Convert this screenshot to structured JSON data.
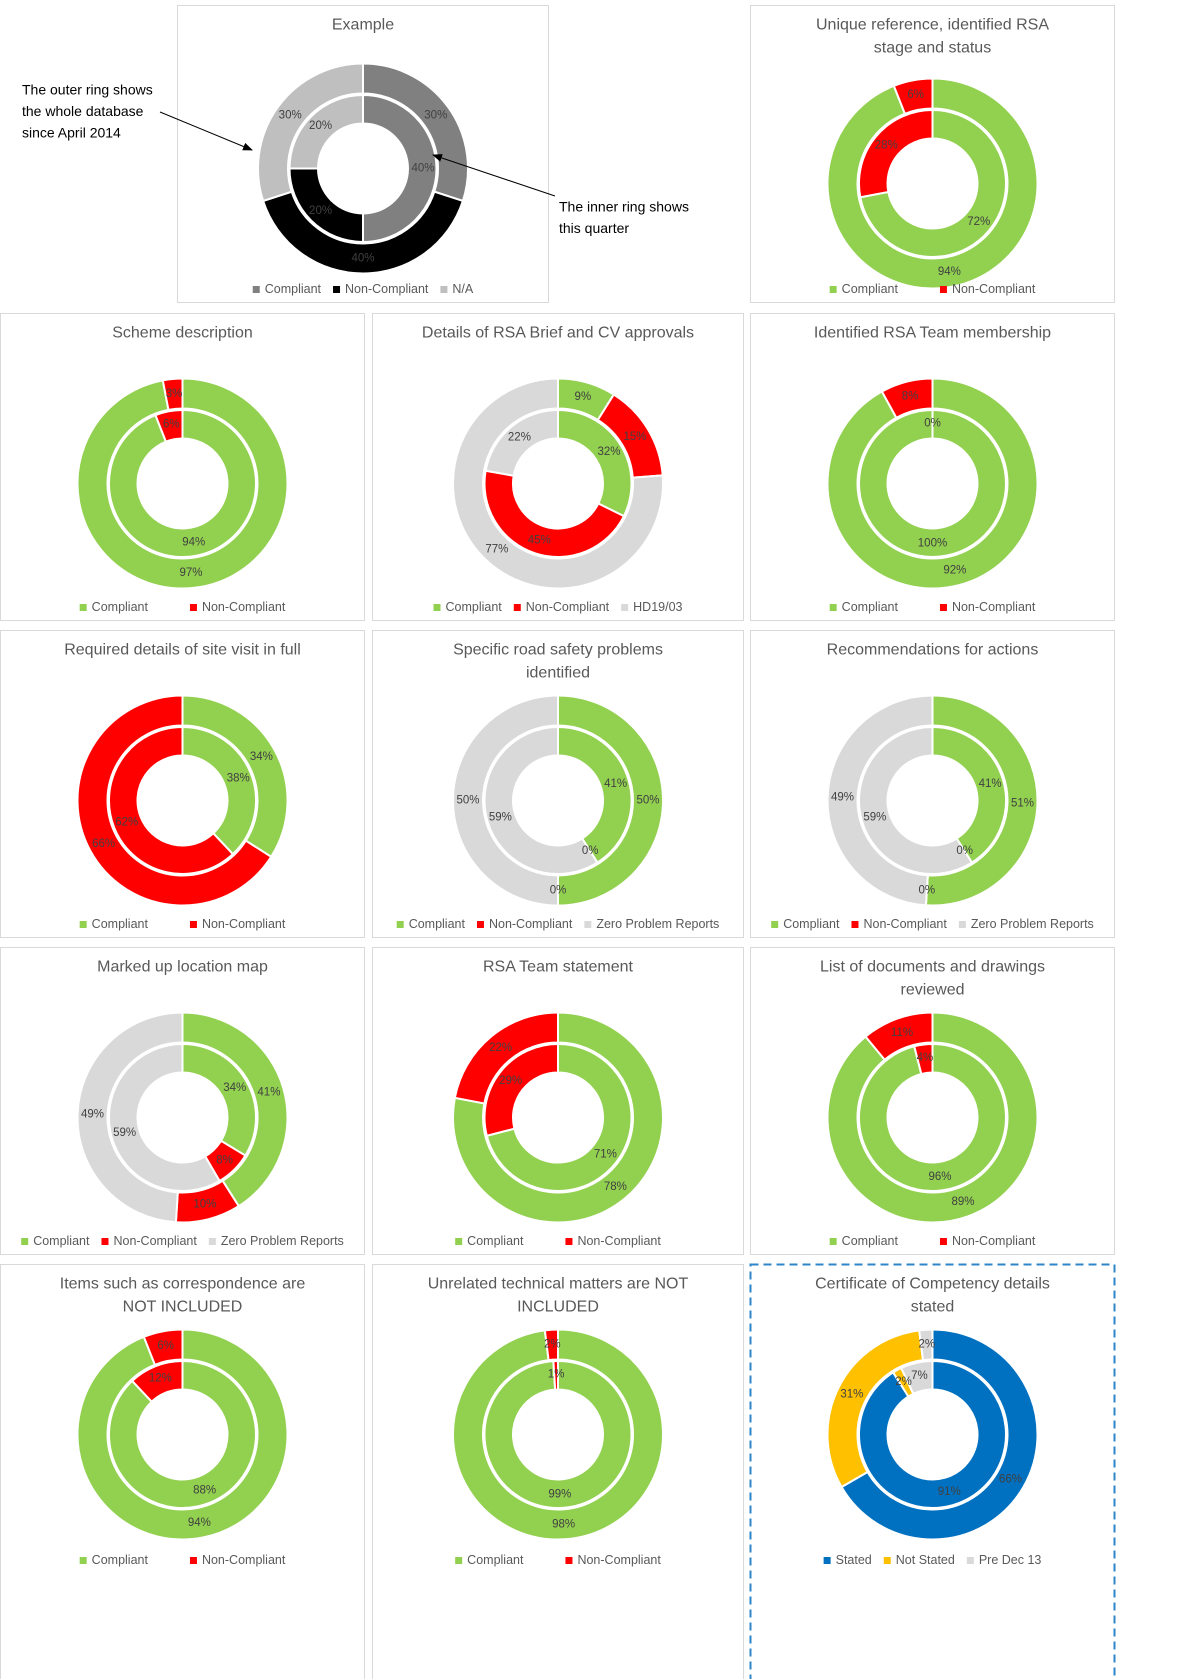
{
  "chart_data": [
    {
      "type": "donut",
      "title": [
        "Example"
      ],
      "categories": [
        "Compliant",
        "Non-Compliant",
        "N/A"
      ],
      "colors": [
        "#808080",
        "#000000",
        "#bfbfbf"
      ],
      "outer": {
        "values": [
          30,
          40,
          30
        ],
        "value_labels": [
          "30%",
          "40%",
          "30%"
        ]
      },
      "inner": {
        "values": [
          40,
          20,
          20
        ],
        "value_labels": [
          "40%",
          "20%",
          "20%"
        ]
      },
      "annotations": [
        [
          "The outer ring shows",
          "the whole database",
          "since April 2014"
        ],
        [
          "The inner ring shows",
          "this quarter"
        ]
      ]
    },
    {
      "type": "donut",
      "title": [
        "Unique reference, identified RSA",
        "stage and status"
      ],
      "categories": [
        "Compliant",
        "Non-Compliant"
      ],
      "colors": [
        "#92d050",
        "#ff0000"
      ],
      "outer": {
        "values": [
          94,
          6
        ],
        "value_labels": [
          "94%",
          "6%"
        ]
      },
      "inner": {
        "values": [
          72,
          28
        ],
        "value_labels": [
          "72%",
          "28%"
        ]
      }
    },
    {
      "type": "donut",
      "title": [
        "Scheme description"
      ],
      "categories": [
        "Compliant",
        "Non-Compliant"
      ],
      "colors": [
        "#92d050",
        "#ff0000"
      ],
      "outer": {
        "values": [
          97,
          3
        ],
        "value_labels": [
          "97%",
          "3%"
        ]
      },
      "inner": {
        "values": [
          94,
          6
        ],
        "value_labels": [
          "94%",
          "6%"
        ]
      }
    },
    {
      "type": "donut",
      "title": [
        "Details of RSA Brief and CV approvals"
      ],
      "categories": [
        "Compliant",
        "Non-Compliant",
        "HD19/03"
      ],
      "colors": [
        "#92d050",
        "#ff0000",
        "#d9d9d9"
      ],
      "outer": {
        "values": [
          9,
          15,
          77
        ],
        "value_labels": [
          "9%",
          "15%",
          "77%"
        ]
      },
      "inner": {
        "values": [
          32,
          45,
          22
        ],
        "value_labels": [
          "32%",
          "45%",
          "22%"
        ]
      }
    },
    {
      "type": "donut",
      "title": [
        "Identified RSA Team membership"
      ],
      "categories": [
        "Compliant",
        "Non-Compliant"
      ],
      "colors": [
        "#92d050",
        "#ff0000"
      ],
      "outer": {
        "values": [
          92,
          8
        ],
        "value_labels": [
          "92%",
          "8%"
        ]
      },
      "inner": {
        "values": [
          100,
          0
        ],
        "value_labels": [
          "100%",
          "0%"
        ]
      }
    },
    {
      "type": "donut",
      "title": [
        "Required details of site visit in full"
      ],
      "categories": [
        "Compliant",
        "Non-Compliant"
      ],
      "colors": [
        "#92d050",
        "#ff0000"
      ],
      "outer": {
        "values": [
          34,
          66
        ],
        "value_labels": [
          "34%",
          "66%"
        ]
      },
      "inner": {
        "values": [
          38,
          62
        ],
        "value_labels": [
          "38%",
          "62%"
        ]
      }
    },
    {
      "type": "donut",
      "title": [
        "Specific road safety problems",
        "identified"
      ],
      "categories": [
        "Compliant",
        "Non-Compliant",
        "Zero Problem Reports"
      ],
      "colors": [
        "#92d050",
        "#ff0000",
        "#d9d9d9"
      ],
      "outer": {
        "values": [
          50,
          0,
          50
        ],
        "value_labels": [
          "50%",
          "0%",
          "50%"
        ]
      },
      "inner": {
        "values": [
          41,
          0,
          59
        ],
        "value_labels": [
          "41%",
          "0%",
          "59%"
        ]
      }
    },
    {
      "type": "donut",
      "title": [
        "Recommendations for actions"
      ],
      "categories": [
        "Compliant",
        "Non-Compliant",
        "Zero Problem Reports"
      ],
      "colors": [
        "#92d050",
        "#ff0000",
        "#d9d9d9"
      ],
      "outer": {
        "values": [
          51,
          0,
          49
        ],
        "value_labels": [
          "51%",
          "0%",
          "49%"
        ]
      },
      "inner": {
        "values": [
          41,
          0,
          59
        ],
        "value_labels": [
          "41%",
          "0%",
          "59%"
        ]
      }
    },
    {
      "type": "donut",
      "title": [
        "Marked up location map"
      ],
      "categories": [
        "Compliant",
        "Non-Compliant",
        "Zero Problem Reports"
      ],
      "colors": [
        "#92d050",
        "#ff0000",
        "#d9d9d9"
      ],
      "outer": {
        "values": [
          41,
          10,
          49
        ],
        "value_labels": [
          "41%",
          "10%",
          "49%"
        ]
      },
      "inner": {
        "values": [
          34,
          8,
          59
        ],
        "value_labels": [
          "34%",
          "8%",
          "59%"
        ]
      }
    },
    {
      "type": "donut",
      "title": [
        "RSA Team statement"
      ],
      "categories": [
        "Compliant",
        "Non-Compliant"
      ],
      "colors": [
        "#92d050",
        "#ff0000"
      ],
      "outer": {
        "values": [
          78,
          22
        ],
        "value_labels": [
          "78%",
          "22%"
        ]
      },
      "inner": {
        "values": [
          71,
          29
        ],
        "value_labels": [
          "71%",
          "29%"
        ]
      }
    },
    {
      "type": "donut",
      "title": [
        "List of documents and drawings",
        "reviewed"
      ],
      "categories": [
        "Compliant",
        "Non-Compliant"
      ],
      "colors": [
        "#92d050",
        "#ff0000"
      ],
      "outer": {
        "values": [
          89,
          11
        ],
        "value_labels": [
          "89%",
          "11%"
        ]
      },
      "inner": {
        "values": [
          96,
          4
        ],
        "value_labels": [
          "96%",
          "4%"
        ]
      }
    },
    {
      "type": "donut",
      "title": [
        "Items such as correspondence are",
        "NOT INCLUDED"
      ],
      "categories": [
        "Compliant",
        "Non-Compliant"
      ],
      "colors": [
        "#92d050",
        "#ff0000"
      ],
      "outer": {
        "values": [
          94,
          6
        ],
        "value_labels": [
          "94%",
          "6%"
        ]
      },
      "inner": {
        "values": [
          88,
          12
        ],
        "value_labels": [
          "88%",
          "12%"
        ]
      }
    },
    {
      "type": "donut",
      "title": [
        "Unrelated technical matters are NOT",
        "INCLUDED"
      ],
      "categories": [
        "Compliant",
        "Non-Compliant"
      ],
      "colors": [
        "#92d050",
        "#ff0000"
      ],
      "outer": {
        "values": [
          98,
          2
        ],
        "value_labels": [
          "98%",
          "2%"
        ]
      },
      "inner": {
        "values": [
          99,
          1
        ],
        "value_labels": [
          "99%",
          "1%"
        ]
      }
    },
    {
      "type": "donut",
      "title": [
        "Certificate of Competency details",
        "stated"
      ],
      "categories": [
        "Stated",
        "Not Stated",
        "Pre Dec 13"
      ],
      "colors": [
        "#0070c0",
        "#ffc000",
        "#d9d9d9"
      ],
      "outer": {
        "values": [
          66,
          31,
          2
        ],
        "value_labels": [
          "66%",
          "31%",
          "2%"
        ]
      },
      "inner": {
        "values": [
          91,
          2,
          7
        ],
        "value_labels": [
          "91%",
          "2%",
          "7%"
        ]
      }
    }
  ]
}
